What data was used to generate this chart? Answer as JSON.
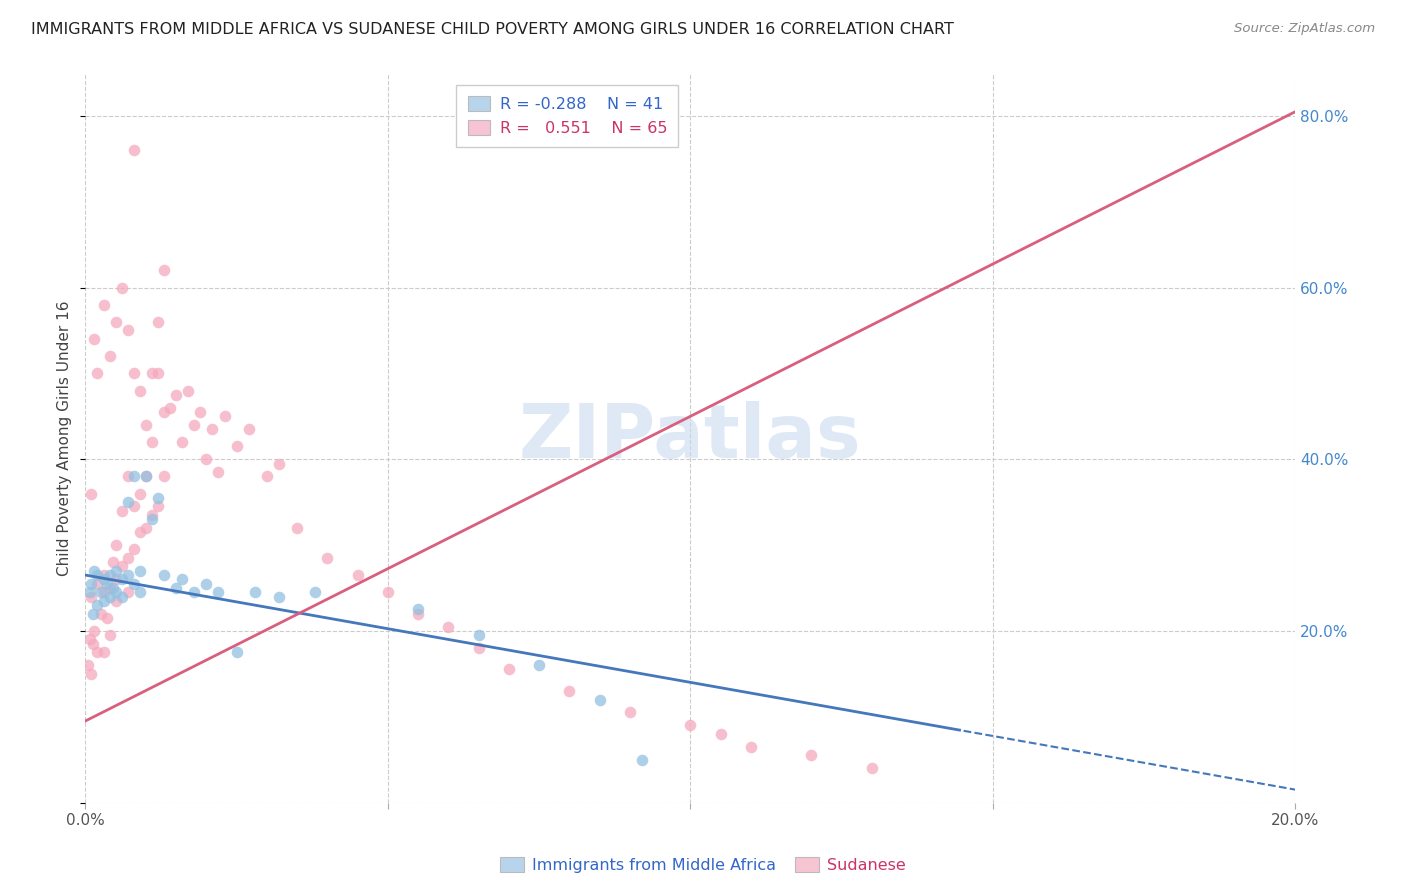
{
  "title": "IMMIGRANTS FROM MIDDLE AFRICA VS SUDANESE CHILD POVERTY AMONG GIRLS UNDER 16 CORRELATION CHART",
  "source": "Source: ZipAtlas.com",
  "ylabel": "Child Poverty Among Girls Under 16",
  "xlim": [
    0.0,
    0.2
  ],
  "ylim": [
    0.0,
    0.85
  ],
  "ytick_vals": [
    0.0,
    0.2,
    0.4,
    0.6,
    0.8
  ],
  "xtick_vals": [
    0.0,
    0.05,
    0.1,
    0.15,
    0.2
  ],
  "blue_R": -0.288,
  "blue_N": 41,
  "pink_R": 0.551,
  "pink_N": 65,
  "blue_color": "#92c0e0",
  "pink_color": "#f5a8be",
  "blue_line_color": "#4477bb",
  "pink_line_color": "#d95f7f",
  "watermark": "ZIPatlas",
  "legend_label_blue": "Immigrants from Middle Africa",
  "legend_label_pink": "Sudanese",
  "blue_line_intercept": 0.265,
  "blue_line_slope": -1.25,
  "blue_line_solid_end": 0.145,
  "pink_line_intercept": 0.095,
  "pink_line_slope": 3.55,
  "blue_x": [
    0.0008,
    0.001,
    0.0012,
    0.0015,
    0.002,
    0.002,
    0.0025,
    0.003,
    0.003,
    0.0035,
    0.004,
    0.004,
    0.0045,
    0.005,
    0.005,
    0.006,
    0.006,
    0.007,
    0.007,
    0.008,
    0.008,
    0.009,
    0.009,
    0.01,
    0.011,
    0.012,
    0.013,
    0.015,
    0.016,
    0.018,
    0.02,
    0.022,
    0.025,
    0.028,
    0.032,
    0.038,
    0.055,
    0.065,
    0.075,
    0.085,
    0.092
  ],
  "blue_y": [
    0.245,
    0.255,
    0.22,
    0.27,
    0.265,
    0.23,
    0.245,
    0.26,
    0.235,
    0.255,
    0.265,
    0.24,
    0.25,
    0.27,
    0.245,
    0.26,
    0.24,
    0.265,
    0.35,
    0.255,
    0.38,
    0.245,
    0.27,
    0.38,
    0.33,
    0.355,
    0.265,
    0.25,
    0.26,
    0.245,
    0.255,
    0.245,
    0.175,
    0.245,
    0.24,
    0.245,
    0.225,
    0.195,
    0.16,
    0.12,
    0.05
  ],
  "pink_x": [
    0.0005,
    0.0008,
    0.001,
    0.001,
    0.0012,
    0.0015,
    0.002,
    0.002,
    0.0025,
    0.003,
    0.003,
    0.003,
    0.0035,
    0.004,
    0.004,
    0.0045,
    0.005,
    0.005,
    0.005,
    0.006,
    0.006,
    0.007,
    0.007,
    0.007,
    0.008,
    0.008,
    0.009,
    0.009,
    0.01,
    0.01,
    0.011,
    0.011,
    0.012,
    0.012,
    0.013,
    0.013,
    0.014,
    0.015,
    0.016,
    0.017,
    0.018,
    0.019,
    0.02,
    0.021,
    0.022,
    0.023,
    0.025,
    0.027,
    0.03,
    0.032,
    0.035,
    0.04,
    0.045,
    0.05,
    0.055,
    0.06,
    0.065,
    0.07,
    0.08,
    0.09,
    0.1,
    0.105,
    0.11,
    0.12,
    0.13
  ],
  "pink_y": [
    0.16,
    0.19,
    0.15,
    0.24,
    0.185,
    0.2,
    0.255,
    0.175,
    0.22,
    0.265,
    0.245,
    0.175,
    0.215,
    0.25,
    0.195,
    0.28,
    0.26,
    0.235,
    0.3,
    0.275,
    0.34,
    0.285,
    0.245,
    0.38,
    0.295,
    0.345,
    0.315,
    0.36,
    0.32,
    0.38,
    0.335,
    0.42,
    0.345,
    0.5,
    0.38,
    0.455,
    0.46,
    0.475,
    0.42,
    0.48,
    0.44,
    0.455,
    0.4,
    0.435,
    0.385,
    0.45,
    0.415,
    0.435,
    0.38,
    0.395,
    0.32,
    0.285,
    0.265,
    0.245,
    0.22,
    0.205,
    0.18,
    0.155,
    0.13,
    0.105,
    0.09,
    0.08,
    0.065,
    0.055,
    0.04
  ],
  "pink_outlier_x": [
    0.001,
    0.0015,
    0.002,
    0.003,
    0.004,
    0.005,
    0.006,
    0.007,
    0.008,
    0.009,
    0.01,
    0.011,
    0.012,
    0.013,
    0.008
  ],
  "pink_outlier_y": [
    0.36,
    0.54,
    0.5,
    0.58,
    0.52,
    0.56,
    0.6,
    0.55,
    0.5,
    0.48,
    0.44,
    0.5,
    0.56,
    0.62,
    0.76
  ]
}
